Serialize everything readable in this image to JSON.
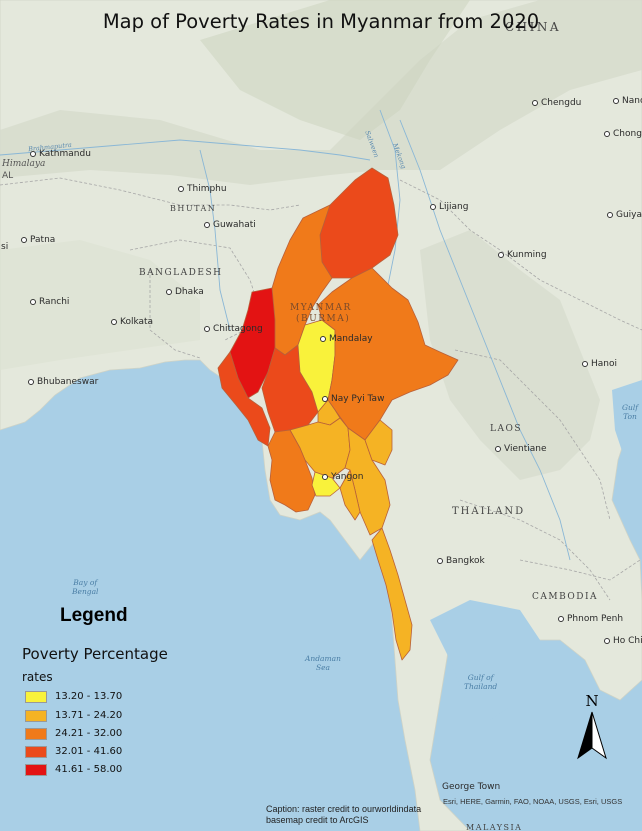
{
  "title": "Map of Poverty Rates in Myanmar from 2020",
  "legend": {
    "title": "Legend",
    "subtitle": "Poverty Percentage",
    "subtitle2": "rates",
    "items": [
      {
        "label": "13.20 - 13.70",
        "color": "#f9f23b"
      },
      {
        "label": "13.71 - 24.20",
        "color": "#f5b324"
      },
      {
        "label": "24.21 - 32.00",
        "color": "#f07a1a"
      },
      {
        "label": "32.01 - 41.60",
        "color": "#eb4a1b"
      },
      {
        "label": "41.61 - 58.00",
        "color": "#e31313"
      }
    ]
  },
  "north_arrow": {
    "label": "N"
  },
  "caption": {
    "line1": "Caption: raster credit to ourworldindata",
    "line2": "basemap credit to ArcGIS"
  },
  "attribution": "Esri, HERE, Garmin, FAO, NOAA, USGS, Esri, USGS",
  "countries": {
    "china": "CHINA",
    "bhutan": "BHUTAN",
    "bangladesh": "BANGLADESH",
    "myanmar_line1": "MYANMAR",
    "myanmar_line2": "(BURMA)",
    "laos": "LAOS",
    "thailand": "THAILAND",
    "cambodia": "CAMBODIA",
    "malaysia": "MALAYSIA"
  },
  "cities": {
    "chengdu": "Chengdu",
    "nanchong": "Nanchong",
    "chongqing": "Chongq",
    "guiyang": "Guiyan",
    "kathmandu": "Kathmandu",
    "thimphu": "Thimphu",
    "lijiang": "Lijiang",
    "guwahati": "Guwahati",
    "patna": "Patna",
    "kunming": "Kunming",
    "dhaka": "Dhaka",
    "ranchi": "Ranchi",
    "kolkata": "Kolkata",
    "chittagong": "Chittagong",
    "mandalay": "Mandalay",
    "hanoi": "Hanoi",
    "bhubaneswar": "Bhubaneswar",
    "naypyitaw": "Nay Pyi Taw",
    "vientiane": "Vientiane",
    "yangon": "Yangon",
    "bangkok": "Bangkok",
    "phnompenh": "Phnom Penh",
    "hochiminh": "Ho Chi",
    "georgetown": "George Town",
    "si": "si"
  },
  "regions_other": {
    "himalaya": "Himalaya",
    "al": "AL"
  },
  "water": {
    "bay_of_bengal": [
      "Bay of",
      "Bengal"
    ],
    "andaman_sea": [
      "Andaman",
      "Sea"
    ],
    "gulf_of_thailand": [
      "Gulf of",
      "Thailand"
    ],
    "gulf_right": [
      "Gulf",
      "Ton"
    ]
  },
  "rivers": {
    "brahmaputra": "Brahmaputra",
    "salween": "Salween",
    "mekong": "Mekong"
  }
}
